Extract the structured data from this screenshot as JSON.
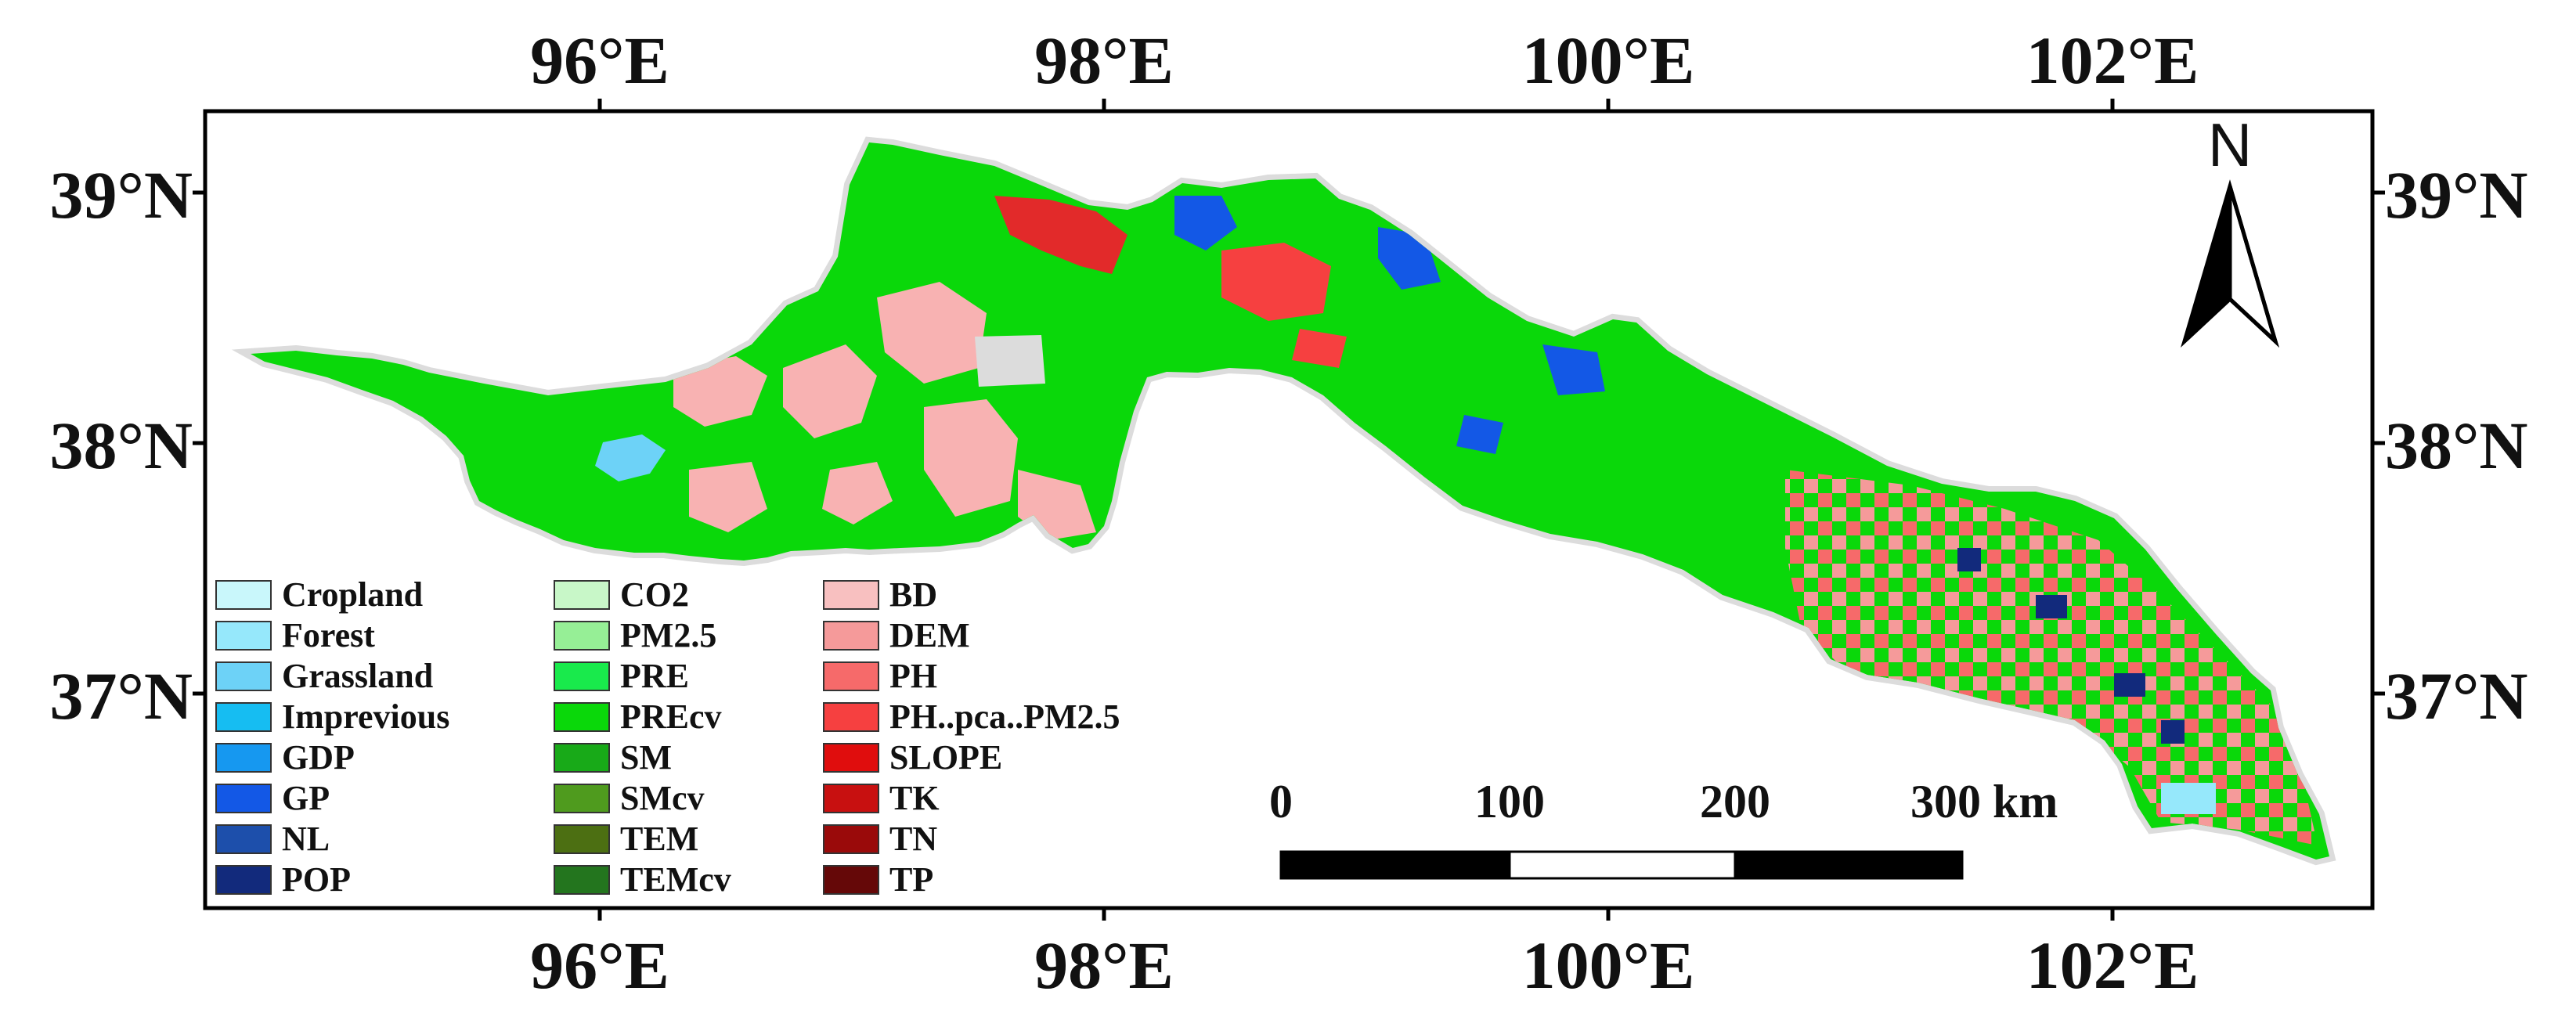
{
  "map": {
    "longitude_labels": [
      "96°E",
      "98°E",
      "100°E",
      "102°E"
    ],
    "latitude_labels": [
      "39°N",
      "38°N",
      "37°N"
    ],
    "north_arrow": {
      "label": "N",
      "icon": "north-arrow-icon"
    },
    "scale_bar": {
      "labels": [
        "0",
        "100",
        "200",
        "300 km"
      ]
    },
    "background_colors": {
      "no_data": "#dcdcdc",
      "frame": "#000000"
    },
    "legend": {
      "columns": [
        [
          {
            "label": "Cropland",
            "color": "#c9f7fb"
          },
          {
            "label": "Forest",
            "color": "#96e8fb"
          },
          {
            "label": "Grassland",
            "color": "#6dd2f7"
          },
          {
            "label": "Imprevious",
            "color": "#16bdf2"
          },
          {
            "label": "GDP",
            "color": "#1698f0"
          },
          {
            "label": "GP",
            "color": "#1358e6"
          },
          {
            "label": "NL",
            "color": "#1d4fab"
          },
          {
            "label": "POP",
            "color": "#122a7c"
          }
        ],
        [
          {
            "label": "CO2",
            "color": "#c8f7c8"
          },
          {
            "label": "PM2.5",
            "color": "#96ef96"
          },
          {
            "label": "PRE",
            "color": "#19ea4c"
          },
          {
            "label": "PREcv",
            "color": "#0ad80a"
          },
          {
            "label": "SM",
            "color": "#18aa18"
          },
          {
            "label": "SMcv",
            "color": "#4f9b1e"
          },
          {
            "label": "TEM",
            "color": "#4c6f12"
          },
          {
            "label": "TEMcv",
            "color": "#23751e"
          }
        ],
        [
          {
            "label": "BD",
            "color": "#f8c0c0"
          },
          {
            "label": "DEM",
            "color": "#f59a9a"
          },
          {
            "label": "PH",
            "color": "#f66a6a"
          },
          {
            "label": "PH..pca..PM2.5",
            "color": "#f64040"
          },
          {
            "label": "SLOPE",
            "color": "#e00d0d"
          },
          {
            "label": "TK",
            "color": "#c81010"
          },
          {
            "label": "TN",
            "color": "#9a0a0a"
          },
          {
            "label": "TP",
            "color": "#650808"
          }
        ]
      ]
    }
  }
}
